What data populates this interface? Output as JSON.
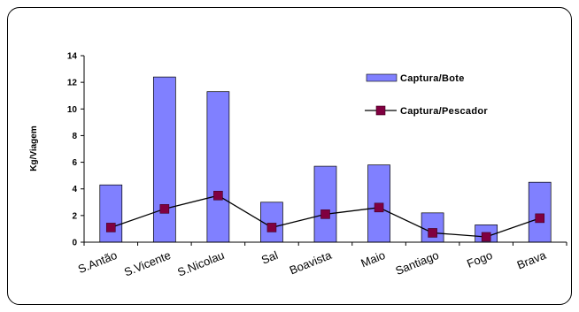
{
  "chart_data": {
    "type": "bar",
    "categories": [
      "S.Antão",
      "S.Vicente",
      "S.Nicolau",
      "Sal",
      "Boavista",
      "Maio",
      "Santiago",
      "Fogo",
      "Brava"
    ],
    "series": [
      {
        "name": "Captura/Bote",
        "type": "bar",
        "color": "#8080ff",
        "values": [
          4.3,
          12.4,
          11.3,
          3.0,
          5.7,
          5.8,
          2.2,
          1.3,
          4.5
        ]
      },
      {
        "name": "Captura/Pescador",
        "type": "line",
        "color": "#800040",
        "values": [
          1.1,
          2.5,
          3.5,
          1.1,
          2.1,
          2.6,
          0.7,
          0.4,
          1.8
        ]
      }
    ],
    "ylabel": "Kg/Viagem",
    "yticks": [
      "0",
      "2",
      "4",
      "6",
      "8",
      "10",
      "12",
      "14"
    ],
    "ylim": [
      0,
      14
    ],
    "grid": false,
    "legend": "top-right"
  }
}
